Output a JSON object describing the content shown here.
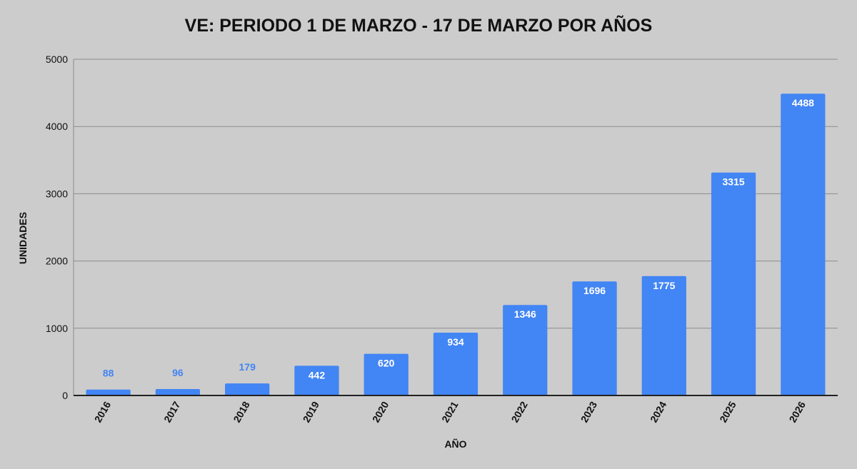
{
  "chart_data": {
    "type": "bar",
    "title": "VE: PERIODO 1 DE MARZO - 17 DE MARZO POR AÑOS",
    "xlabel": "AÑO",
    "ylabel": "UNIDADES",
    "categories": [
      "2016",
      "2017",
      "2018",
      "2019",
      "2020",
      "2021",
      "2022",
      "2023",
      "2024",
      "2025",
      "2026"
    ],
    "values": [
      88,
      96,
      179,
      442,
      620,
      934,
      1346,
      1696,
      1775,
      3315,
      4488
    ],
    "value_labels": [
      "88",
      "96",
      "179",
      "442",
      "620",
      "934",
      "1346",
      "1696",
      "1775",
      "3315",
      "4488"
    ],
    "ylim": [
      0,
      5000
    ],
    "yticks": [
      "0",
      "1000",
      "2000",
      "3000",
      "4000",
      "5000"
    ],
    "grid": true,
    "legend": "none",
    "colors": {
      "bar": "#4285f4",
      "label_inside": "#ffffff",
      "label_outside": "#4285f4",
      "grid": "#8c8c8c",
      "axis": "#222222",
      "background": "#cccccc"
    }
  }
}
